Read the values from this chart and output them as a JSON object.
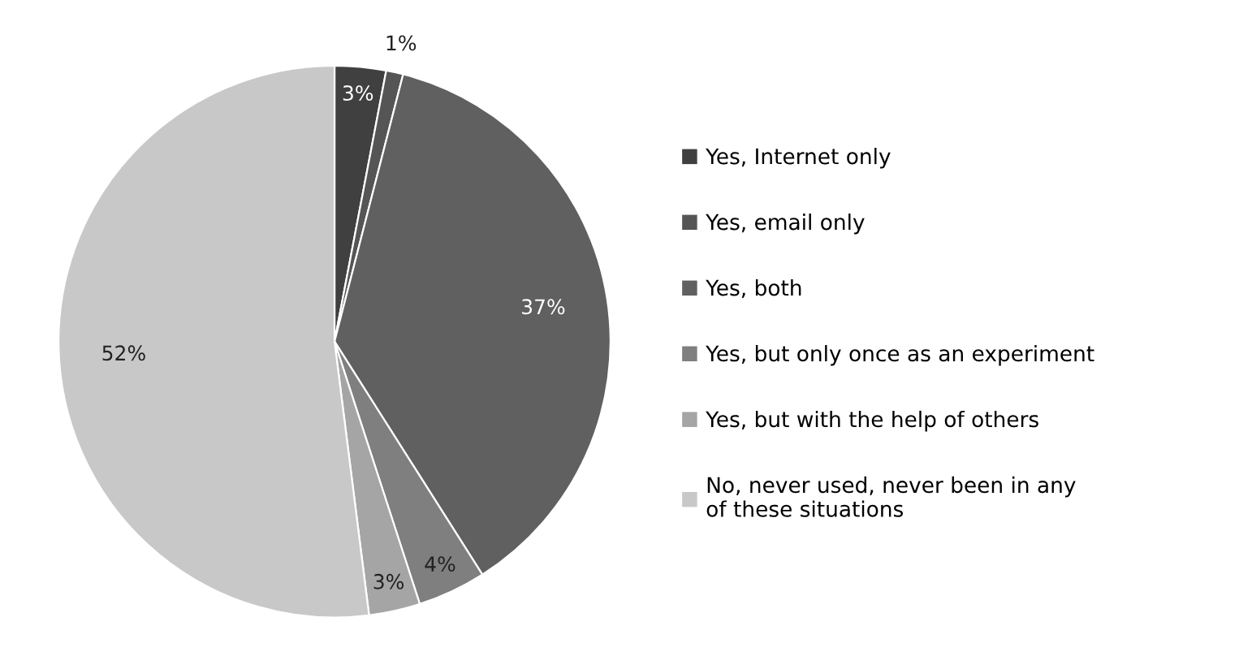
{
  "chart_data": {
    "type": "pie",
    "categories": [
      "Yes, Internet only",
      "Yes, email only",
      "Yes, both",
      "Yes, but only once as an experiment",
      "Yes, but with the help of others",
      "No, never used, never been in any\nof these situations"
    ],
    "values": [
      3,
      1,
      37,
      4,
      3,
      52
    ],
    "colors": [
      "#404040",
      "#555555",
      "#606060",
      "#7f7f7f",
      "#a5a5a5",
      "#c8c8c8"
    ],
    "value_labels": [
      "3%",
      "1%",
      "37%",
      "4%",
      "3%",
      "52%"
    ],
    "legend": "right"
  }
}
